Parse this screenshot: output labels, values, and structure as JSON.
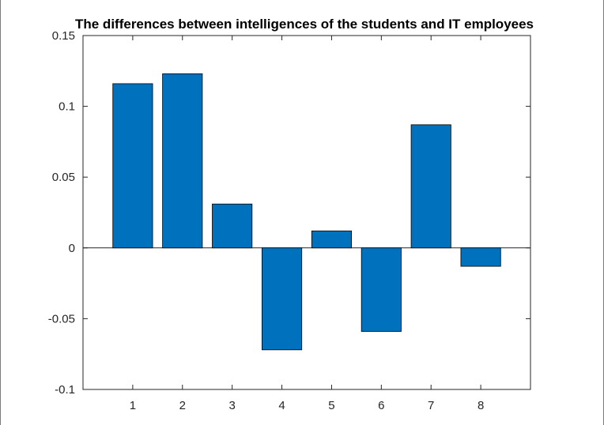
{
  "chart_data": {
    "type": "bar",
    "title": "The differences between intelligences of the students and IT employees",
    "xlabel": "",
    "ylabel": "",
    "categories": [
      "1",
      "2",
      "3",
      "4",
      "5",
      "6",
      "7",
      "8"
    ],
    "values": [
      0.116,
      0.123,
      0.031,
      -0.072,
      0.012,
      -0.059,
      0.087,
      -0.013
    ],
    "ylim": [
      -0.1,
      0.15
    ],
    "y_ticks": [
      -0.1,
      -0.05,
      0,
      0.05,
      0.1,
      0.15
    ],
    "y_tick_labels": [
      "-0.1",
      "-0.05",
      "0",
      "0.05",
      "0.1",
      "0.15"
    ],
    "bar_color": "#0072BD",
    "grid": false,
    "legend": "none"
  }
}
